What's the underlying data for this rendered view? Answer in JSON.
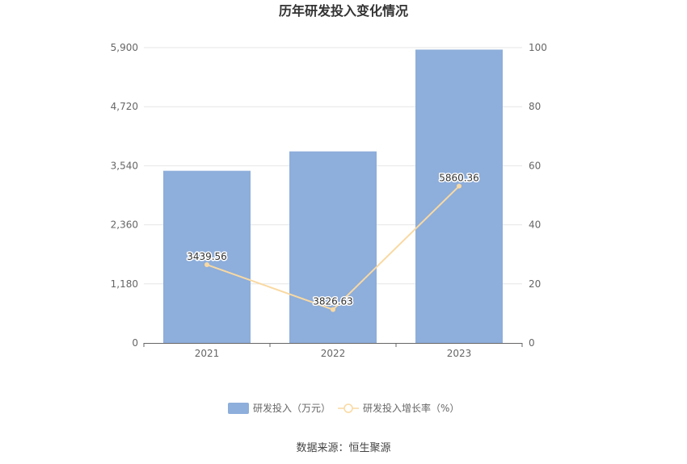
{
  "chart_data": {
    "type": "bar",
    "title": "历年研发投入变化情况",
    "categories": [
      "2021",
      "2022",
      "2023"
    ],
    "series": [
      {
        "name": "研发投入（万元）",
        "type": "bar",
        "axis": "left",
        "values": [
          3439.56,
          3826.63,
          5860.36
        ],
        "labels": [
          "3439.56",
          "3826.63",
          "5860.36"
        ],
        "color": "#8eaedb"
      },
      {
        "name": "研发投入增长率（%）",
        "type": "line",
        "axis": "right",
        "values": [
          26.5,
          11.3,
          53.1
        ],
        "color": "#f9d9a2"
      }
    ],
    "y_left": {
      "min": 0,
      "max": 5900,
      "ticks": [
        "0",
        "1,180",
        "2,360",
        "3,540",
        "4,720",
        "5,900"
      ]
    },
    "y_right": {
      "min": 0,
      "max": 100,
      "ticks": [
        "0",
        "20",
        "40",
        "60",
        "80",
        "100"
      ]
    },
    "grid": true,
    "legend_position": "bottom"
  },
  "source": "数据来源：恒生聚源"
}
